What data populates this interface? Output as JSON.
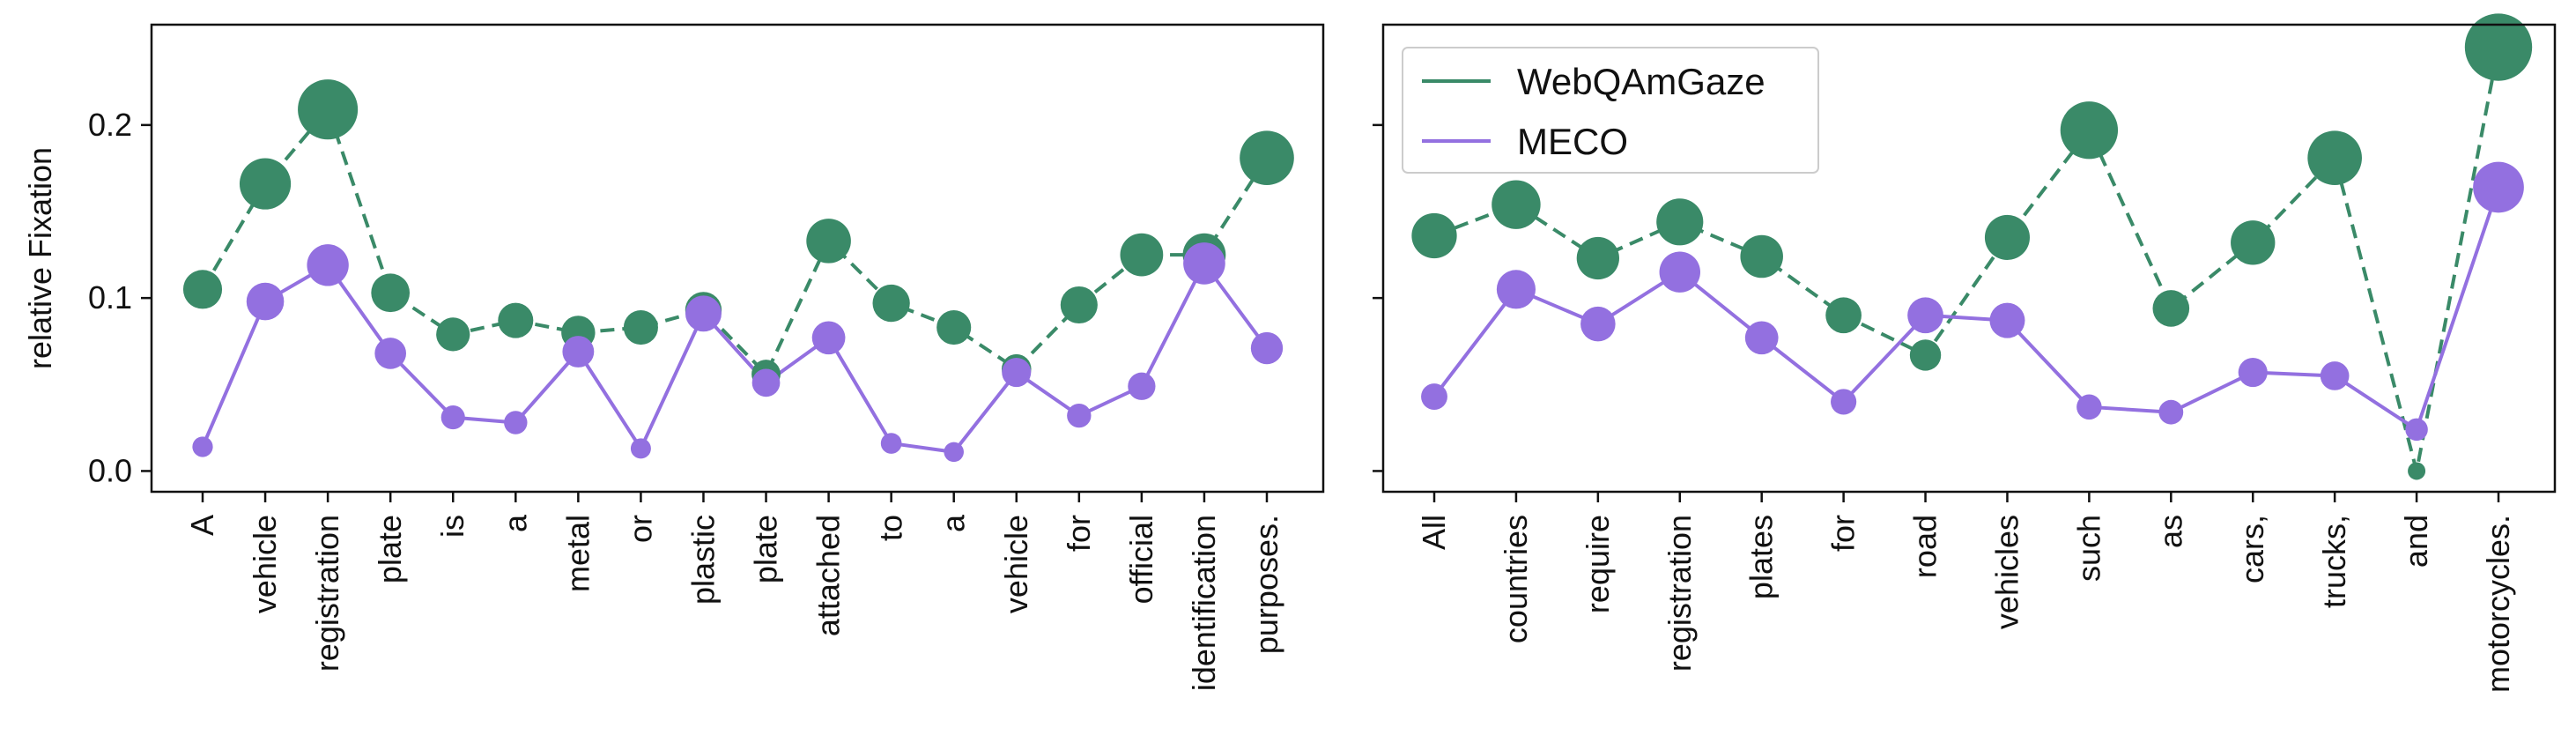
{
  "chart_data": [
    {
      "type": "line",
      "ylabel": "relative Fixation",
      "ylim": [
        -0.012,
        0.258
      ],
      "yticks": [
        "0.0",
        "0.1",
        "0.2"
      ],
      "ytick_values": [
        0.0,
        0.1,
        0.2
      ],
      "legend": "none",
      "categories": [
        "A",
        "vehicle",
        "registration",
        "plate",
        "is",
        "a",
        "metal",
        "or",
        "plastic",
        "plate",
        "attached",
        "to",
        "a",
        "vehicle",
        "for",
        "official",
        "identification",
        "purposes."
      ],
      "series": [
        {
          "name": "WebQAmGaze",
          "color": "#3a8a68",
          "dashed": true,
          "values": [
            0.105,
            0.166,
            0.209,
            0.103,
            0.079,
            0.087,
            0.08,
            0.083,
            0.093,
            0.056,
            0.133,
            0.097,
            0.083,
            0.059,
            0.096,
            0.125,
            0.125,
            0.181
          ]
        },
        {
          "name": "MECO",
          "color": "#9370e0",
          "dashed": false,
          "values": [
            0.014,
            0.098,
            0.119,
            0.068,
            0.031,
            0.028,
            0.069,
            0.013,
            0.091,
            0.051,
            0.077,
            0.016,
            0.011,
            0.057,
            0.032,
            0.049,
            0.12,
            0.071
          ]
        }
      ]
    },
    {
      "type": "line",
      "ylabel": "",
      "ylim": [
        -0.012,
        0.258
      ],
      "yticks": [
        "",
        "",
        ""
      ],
      "ytick_values": [
        0.0,
        0.1,
        0.2
      ],
      "legend": "top-left",
      "categories": [
        "All",
        "countries",
        "require",
        "registration",
        "plates",
        "for",
        "road",
        "vehicles",
        "such",
        "as",
        "cars,",
        "trucks,",
        "and",
        "motorcycles."
      ],
      "series": [
        {
          "name": "WebQAmGaze",
          "color": "#3a8a68",
          "dashed": true,
          "values": [
            0.136,
            0.154,
            0.123,
            0.144,
            0.124,
            0.09,
            0.067,
            0.135,
            0.197,
            0.094,
            0.132,
            0.181,
            0.0,
            0.245
          ]
        },
        {
          "name": "MECO",
          "color": "#9370e0",
          "dashed": false,
          "values": [
            0.043,
            0.105,
            0.085,
            0.115,
            0.077,
            0.04,
            0.09,
            0.087,
            0.037,
            0.034,
            0.057,
            0.055,
            0.024,
            0.164
          ]
        }
      ]
    }
  ]
}
